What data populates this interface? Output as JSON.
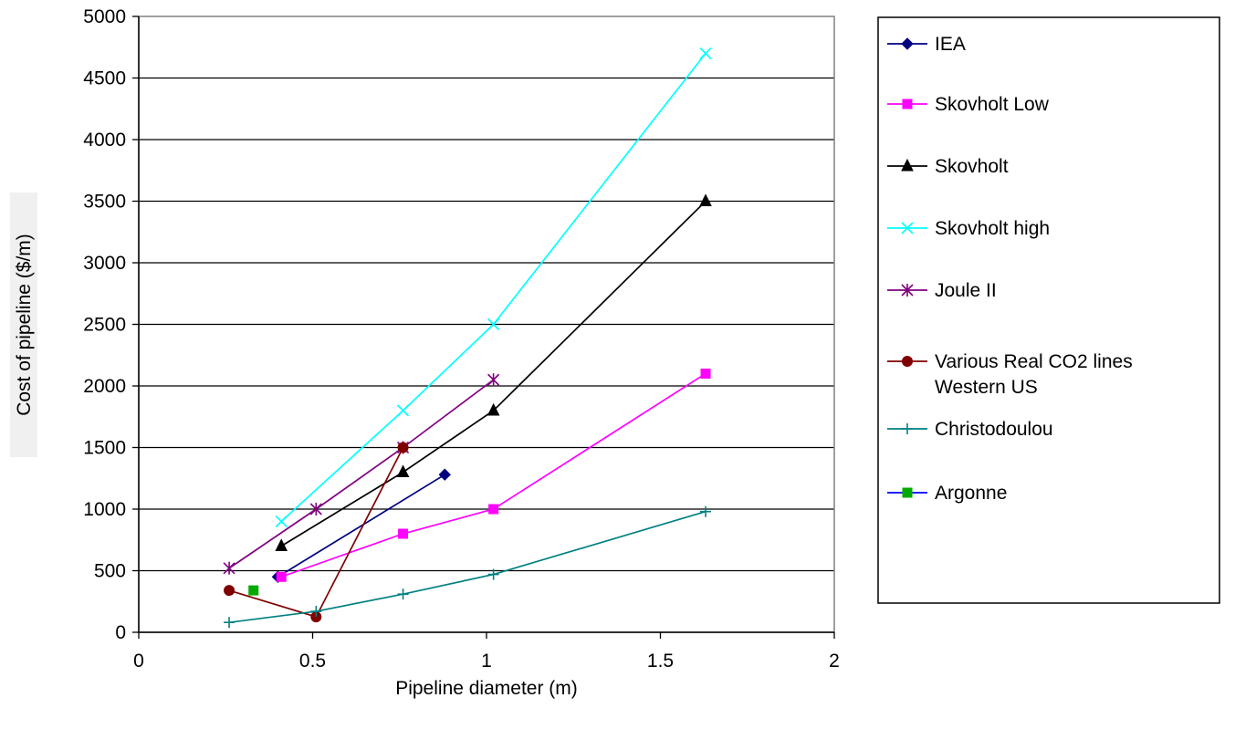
{
  "chart_data": {
    "type": "line",
    "title": "",
    "xlabel": "Pipeline diameter (m)",
    "ylabel": "Cost of pipeline ($/m)",
    "xlim": [
      0,
      2
    ],
    "ylim": [
      0,
      5000
    ],
    "x_ticks": [
      "0",
      "0.5",
      "1",
      "1.5",
      "2"
    ],
    "y_ticks": [
      "0",
      "500",
      "1000",
      "1500",
      "2000",
      "2500",
      "3000",
      "3500",
      "4000",
      "4500",
      "5000"
    ],
    "grid": "horizontal",
    "legend_position": "right",
    "series": [
      {
        "name": "IEA",
        "color": "#000080",
        "marker": "diamond",
        "points": [
          [
            0.4,
            450
          ],
          [
            0.88,
            1280
          ]
        ]
      },
      {
        "name": "Skovholt Low",
        "color": "#ff00ff",
        "marker": "square",
        "points": [
          [
            0.41,
            450
          ],
          [
            0.76,
            800
          ],
          [
            1.02,
            1000
          ],
          [
            1.63,
            2100
          ]
        ]
      },
      {
        "name": "Skovholt",
        "color": "#000000",
        "marker": "triangle",
        "points": [
          [
            0.41,
            700
          ],
          [
            0.76,
            1300
          ],
          [
            1.02,
            1800
          ],
          [
            1.63,
            3500
          ]
        ]
      },
      {
        "name": "Skovholt high",
        "color": "#00ffff",
        "marker": "x",
        "points": [
          [
            0.41,
            900
          ],
          [
            0.76,
            1800
          ],
          [
            1.02,
            2500
          ],
          [
            1.63,
            4700
          ]
        ]
      },
      {
        "name": "Joule II",
        "color": "#800080",
        "marker": "asterisk",
        "points": [
          [
            0.26,
            520
          ],
          [
            0.51,
            1000
          ],
          [
            0.76,
            1500
          ],
          [
            1.02,
            2050
          ]
        ]
      },
      {
        "name": "Various Real CO2 lines Western US",
        "color": "#800000",
        "marker": "circle",
        "points": [
          [
            0.26,
            340
          ],
          [
            0.51,
            125
          ],
          [
            0.76,
            1500
          ]
        ]
      },
      {
        "name": "Christodoulou",
        "color": "#008080",
        "marker": "plus",
        "points": [
          [
            0.26,
            80
          ],
          [
            0.51,
            170
          ],
          [
            0.76,
            310
          ],
          [
            1.02,
            470
          ],
          [
            1.63,
            980
          ]
        ]
      },
      {
        "name": "Argonne",
        "color": "#00aa00",
        "line_color": "#0000ff",
        "marker": "square",
        "points": [
          [
            0.33,
            340
          ]
        ]
      }
    ]
  }
}
